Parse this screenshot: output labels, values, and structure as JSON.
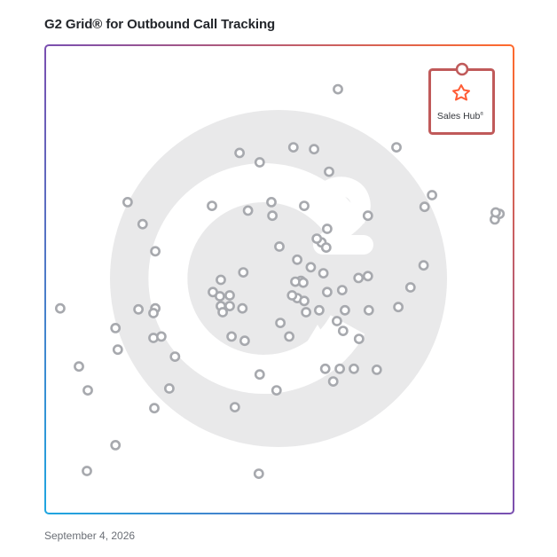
{
  "header": {
    "title": "G2 Grid® for Outbound Call Tracking"
  },
  "footer": {
    "date": "September 4, 2026"
  },
  "featured": {
    "name": "Sales Hub",
    "mark": "®",
    "color": "#ff5c35",
    "border_color": "#c05a5a"
  },
  "colors": {
    "marker": "#a7a9ae",
    "watermark": "#e9e9ea",
    "axis_top": "#a04aa0",
    "axis_left": "#3a6fc0"
  },
  "chart_data": {
    "type": "scatter",
    "title": "G2 Grid® for Outbound Call Tracking",
    "xlabel": "",
    "ylabel": "",
    "xlim": [
      0,
      100
    ],
    "ylim": [
      0,
      100
    ],
    "grid": "quadrants",
    "points": [
      {
        "x": 62.5,
        "y": 90.6
      },
      {
        "x": 41.5,
        "y": 77.0
      },
      {
        "x": 53.0,
        "y": 78.2
      },
      {
        "x": 57.4,
        "y": 77.8
      },
      {
        "x": 45.8,
        "y": 75.0
      },
      {
        "x": 75.0,
        "y": 78.2
      },
      {
        "x": 60.6,
        "y": 73.0
      },
      {
        "x": 17.6,
        "y": 66.5
      },
      {
        "x": 35.6,
        "y": 65.7
      },
      {
        "x": 43.3,
        "y": 64.7
      },
      {
        "x": 48.3,
        "y": 66.5
      },
      {
        "x": 48.5,
        "y": 63.6
      },
      {
        "x": 55.3,
        "y": 65.7
      },
      {
        "x": 68.9,
        "y": 63.6
      },
      {
        "x": 81.0,
        "y": 65.5
      },
      {
        "x": 82.6,
        "y": 68.0
      },
      {
        "x": 96.0,
        "y": 62.8
      },
      {
        "x": 97.0,
        "y": 64.0
      },
      {
        "x": 96.2,
        "y": 64.3
      },
      {
        "x": 20.8,
        "y": 61.8
      },
      {
        "x": 60.2,
        "y": 60.8
      },
      {
        "x": 59.0,
        "y": 57.9
      },
      {
        "x": 58.0,
        "y": 58.7
      },
      {
        "x": 60.0,
        "y": 56.8
      },
      {
        "x": 50.0,
        "y": 57.0
      },
      {
        "x": 53.8,
        "y": 54.2
      },
      {
        "x": 56.7,
        "y": 52.6
      },
      {
        "x": 23.5,
        "y": 56.0
      },
      {
        "x": 42.3,
        "y": 51.5
      },
      {
        "x": 59.4,
        "y": 51.3
      },
      {
        "x": 80.8,
        "y": 53.0
      },
      {
        "x": 37.5,
        "y": 49.9
      },
      {
        "x": 54.6,
        "y": 49.7
      },
      {
        "x": 66.9,
        "y": 50.3
      },
      {
        "x": 68.9,
        "y": 50.7
      },
      {
        "x": 78.0,
        "y": 48.3
      },
      {
        "x": 53.4,
        "y": 49.5
      },
      {
        "x": 55.1,
        "y": 49.3
      },
      {
        "x": 60.2,
        "y": 47.3
      },
      {
        "x": 63.4,
        "y": 47.7
      },
      {
        "x": 35.8,
        "y": 47.3
      },
      {
        "x": 37.3,
        "y": 46.4
      },
      {
        "x": 39.4,
        "y": 46.6
      },
      {
        "x": 53.8,
        "y": 46.0
      },
      {
        "x": 52.7,
        "y": 46.6
      },
      {
        "x": 55.3,
        "y": 45.4
      },
      {
        "x": 39.4,
        "y": 44.3
      },
      {
        "x": 37.5,
        "y": 44.3
      },
      {
        "x": 42.1,
        "y": 43.8
      },
      {
        "x": 37.9,
        "y": 43.0
      },
      {
        "x": 55.7,
        "y": 43.0
      },
      {
        "x": 58.5,
        "y": 43.4
      },
      {
        "x": 64.0,
        "y": 43.4
      },
      {
        "x": 69.1,
        "y": 43.4
      },
      {
        "x": 75.4,
        "y": 44.1
      },
      {
        "x": 3.2,
        "y": 43.8
      },
      {
        "x": 19.9,
        "y": 43.6
      },
      {
        "x": 23.5,
        "y": 43.8
      },
      {
        "x": 23.1,
        "y": 42.8
      },
      {
        "x": 50.2,
        "y": 40.7
      },
      {
        "x": 62.3,
        "y": 41.1
      },
      {
        "x": 15.0,
        "y": 39.6
      },
      {
        "x": 63.6,
        "y": 39.0
      },
      {
        "x": 23.1,
        "y": 37.5
      },
      {
        "x": 24.8,
        "y": 37.8
      },
      {
        "x": 39.8,
        "y": 37.8
      },
      {
        "x": 42.6,
        "y": 36.9
      },
      {
        "x": 52.1,
        "y": 37.8
      },
      {
        "x": 67.0,
        "y": 37.3
      },
      {
        "x": 15.5,
        "y": 35.0
      },
      {
        "x": 27.7,
        "y": 33.5
      },
      {
        "x": 7.2,
        "y": 31.4
      },
      {
        "x": 45.8,
        "y": 29.7
      },
      {
        "x": 59.8,
        "y": 30.9
      },
      {
        "x": 62.9,
        "y": 30.9
      },
      {
        "x": 65.9,
        "y": 30.9
      },
      {
        "x": 70.8,
        "y": 30.7
      },
      {
        "x": 61.5,
        "y": 28.2
      },
      {
        "x": 9.1,
        "y": 26.3
      },
      {
        "x": 26.5,
        "y": 26.7
      },
      {
        "x": 49.4,
        "y": 26.3
      },
      {
        "x": 23.3,
        "y": 22.5
      },
      {
        "x": 40.5,
        "y": 22.7
      },
      {
        "x": 15.0,
        "y": 14.6
      },
      {
        "x": 8.9,
        "y": 9.1
      },
      {
        "x": 45.6,
        "y": 8.5
      }
    ]
  }
}
